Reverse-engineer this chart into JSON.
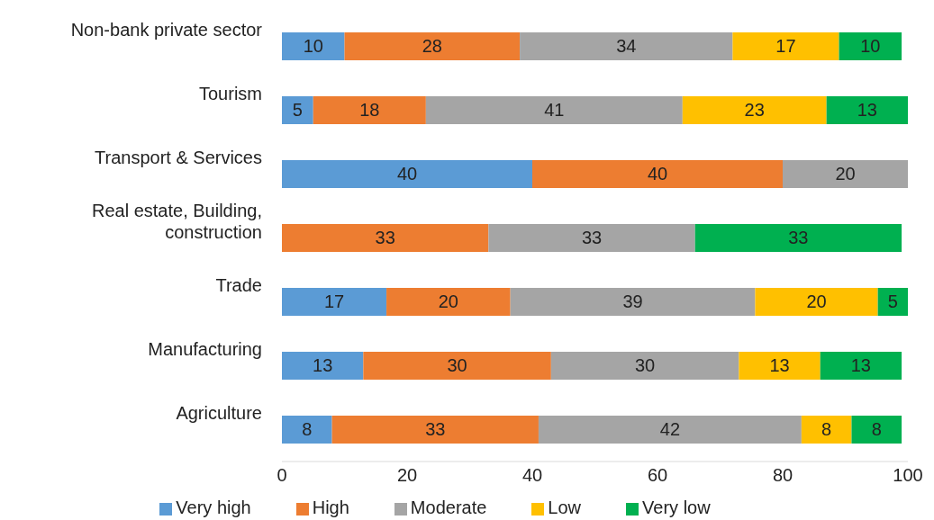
{
  "chart_data": {
    "type": "bar",
    "orientation": "horizontal",
    "stacked": true,
    "legend": "bottom",
    "grid": false,
    "categories": [
      "Non-bank private sector",
      "Tourism",
      "Transport & Services",
      "Real estate, Building, construction",
      "Trade",
      "Manufacturing",
      "Agriculture"
    ],
    "xlim": [
      0,
      100
    ],
    "xticks": [
      0,
      20,
      40,
      60,
      80,
      100
    ],
    "series": [
      {
        "name": "Very high",
        "color": "#5b9bd5",
        "values": [
          10,
          5,
          40,
          null,
          16.7,
          13,
          8
        ],
        "value_labels": [
          "10",
          "5",
          "40",
          null,
          "17",
          "13",
          "8"
        ]
      },
      {
        "name": "High",
        "color": "#ed7d31",
        "values": [
          28,
          18,
          40,
          33,
          19.8,
          30,
          33
        ],
        "value_labels": [
          "28",
          "18",
          "40",
          "33",
          "20",
          "30",
          "33"
        ]
      },
      {
        "name": "Moderate",
        "color": "#a5a5a5",
        "values": [
          34,
          41,
          20,
          33,
          39.1,
          30,
          42
        ],
        "value_labels": [
          "34",
          "41",
          "20",
          "33",
          "39",
          "30",
          "42"
        ]
      },
      {
        "name": "Low",
        "color": "#ffc000",
        "values": [
          17,
          23,
          null,
          null,
          19.6,
          13,
          8
        ],
        "value_labels": [
          "17",
          "23",
          null,
          null,
          "20",
          "13",
          "8"
        ]
      },
      {
        "name": "Very low",
        "color": "#00b050",
        "values": [
          10,
          13,
          null,
          33,
          4.8,
          13,
          8
        ],
        "value_labels": [
          "10",
          "13",
          null,
          "33",
          "5",
          "13",
          "8"
        ]
      }
    ]
  }
}
